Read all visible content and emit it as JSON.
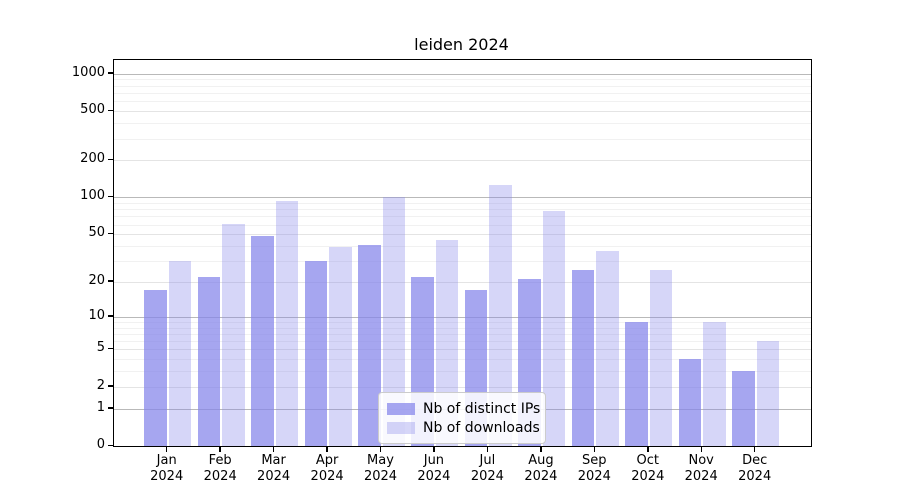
{
  "title": "leiden 2024",
  "legend": {
    "items": [
      {
        "label": "Nb of distinct IPs",
        "color": "rgba(131,131,234,0.72)"
      },
      {
        "label": "Nb of downloads",
        "color": "rgba(131,131,234,0.33)"
      }
    ]
  },
  "chart_data": {
    "type": "bar",
    "title": "leiden 2024",
    "categories": [
      "Jan",
      "Feb",
      "Mar",
      "Apr",
      "May",
      "Jun",
      "Jul",
      "Aug",
      "Sep",
      "Oct",
      "Nov",
      "Dec"
    ],
    "year_label": "2024",
    "series": [
      {
        "name": "Nb of distinct IPs",
        "color": "rgba(131,131,234,0.72)",
        "values": [
          17,
          22,
          48,
          30,
          41,
          22,
          17,
          21,
          25,
          9,
          4,
          3
        ]
      },
      {
        "name": "Nb of downloads",
        "color": "rgba(131,131,234,0.33)",
        "values": [
          30,
          61,
          93,
          39,
          100,
          45,
          125,
          78,
          36,
          25,
          9,
          6
        ]
      }
    ],
    "xlabel": "",
    "ylabel": "",
    "yticks": [
      0,
      1,
      2,
      5,
      10,
      20,
      50,
      100,
      200,
      500,
      1000
    ],
    "yscale": "log1p",
    "ylim": [
      0,
      1290
    ],
    "grid": true,
    "legend_position": "lower-center"
  }
}
